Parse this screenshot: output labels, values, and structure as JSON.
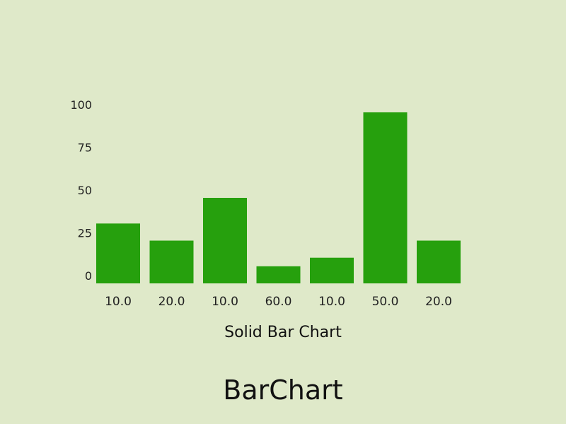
{
  "screen_title": "BarChart",
  "colors": {
    "background": "#dfe9c9",
    "bar": "#26a00d"
  },
  "chart_data": {
    "type": "bar",
    "title": "",
    "xlabel": "Solid Bar Chart",
    "ylabel": "",
    "categories": [
      "10.0",
      "20.0",
      "10.0",
      "60.0",
      "10.0",
      "50.0",
      "20.0"
    ],
    "values": [
      35,
      25,
      50,
      10,
      15,
      100,
      25
    ],
    "ylim": [
      0,
      100
    ],
    "yticks": [
      "0",
      "25",
      "50",
      "75",
      "100"
    ],
    "grid": false,
    "legend": "none"
  }
}
